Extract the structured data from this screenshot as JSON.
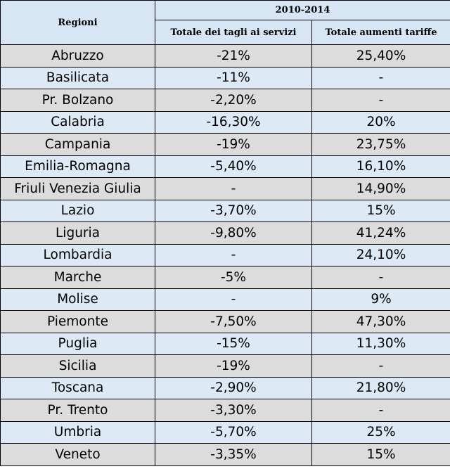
{
  "table": {
    "header_region": "Regioni",
    "header_period": "2010-2014",
    "header_cuts": "Totale dei tagli ai servizi",
    "header_increases": "Totale aumenti tariffe",
    "rows": [
      {
        "region": "Abruzzo",
        "cuts": "-21%",
        "increases": "25,40%"
      },
      {
        "region": "Basilicata",
        "cuts": "-11%",
        "increases": "-"
      },
      {
        "region": "Pr. Bolzano",
        "cuts": "-2,20%",
        "increases": "-"
      },
      {
        "region": "Calabria",
        "cuts": "-16,30%",
        "increases": "20%"
      },
      {
        "region": "Campania",
        "cuts": "-19%",
        "increases": "23,75%"
      },
      {
        "region": "Emilia-Romagna",
        "cuts": "-5,40%",
        "increases": "16,10%"
      },
      {
        "region": "Friuli Venezia Giulia",
        "cuts": "-",
        "increases": "14,90%"
      },
      {
        "region": "Lazio",
        "cuts": "-3,70%",
        "increases": "15%"
      },
      {
        "region": "Liguria",
        "cuts": "-9,80%",
        "increases": "41,24%"
      },
      {
        "region": "Lombardia",
        "cuts": "-",
        "increases": "24,10%"
      },
      {
        "region": "Marche",
        "cuts": "-5%",
        "increases": "-"
      },
      {
        "region": "Molise",
        "cuts": "-",
        "increases": "9%"
      },
      {
        "region": "Piemonte",
        "cuts": "-7,50%",
        "increases": "47,30%"
      },
      {
        "region": "Puglia",
        "cuts": "-15%",
        "increases": "11,30%"
      },
      {
        "region": "Sicilia",
        "cuts": "-19%",
        "increases": "-"
      },
      {
        "region": "Toscana",
        "cuts": "-2,90%",
        "increases": "21,80%"
      },
      {
        "region": "Pr. Trento",
        "cuts": "-3,30%",
        "increases": "-"
      },
      {
        "region": "Umbria",
        "cuts": "-5,70%",
        "increases": "25%"
      },
      {
        "region": "Veneto",
        "cuts": "-3,35%",
        "increases": "15%"
      }
    ]
  }
}
